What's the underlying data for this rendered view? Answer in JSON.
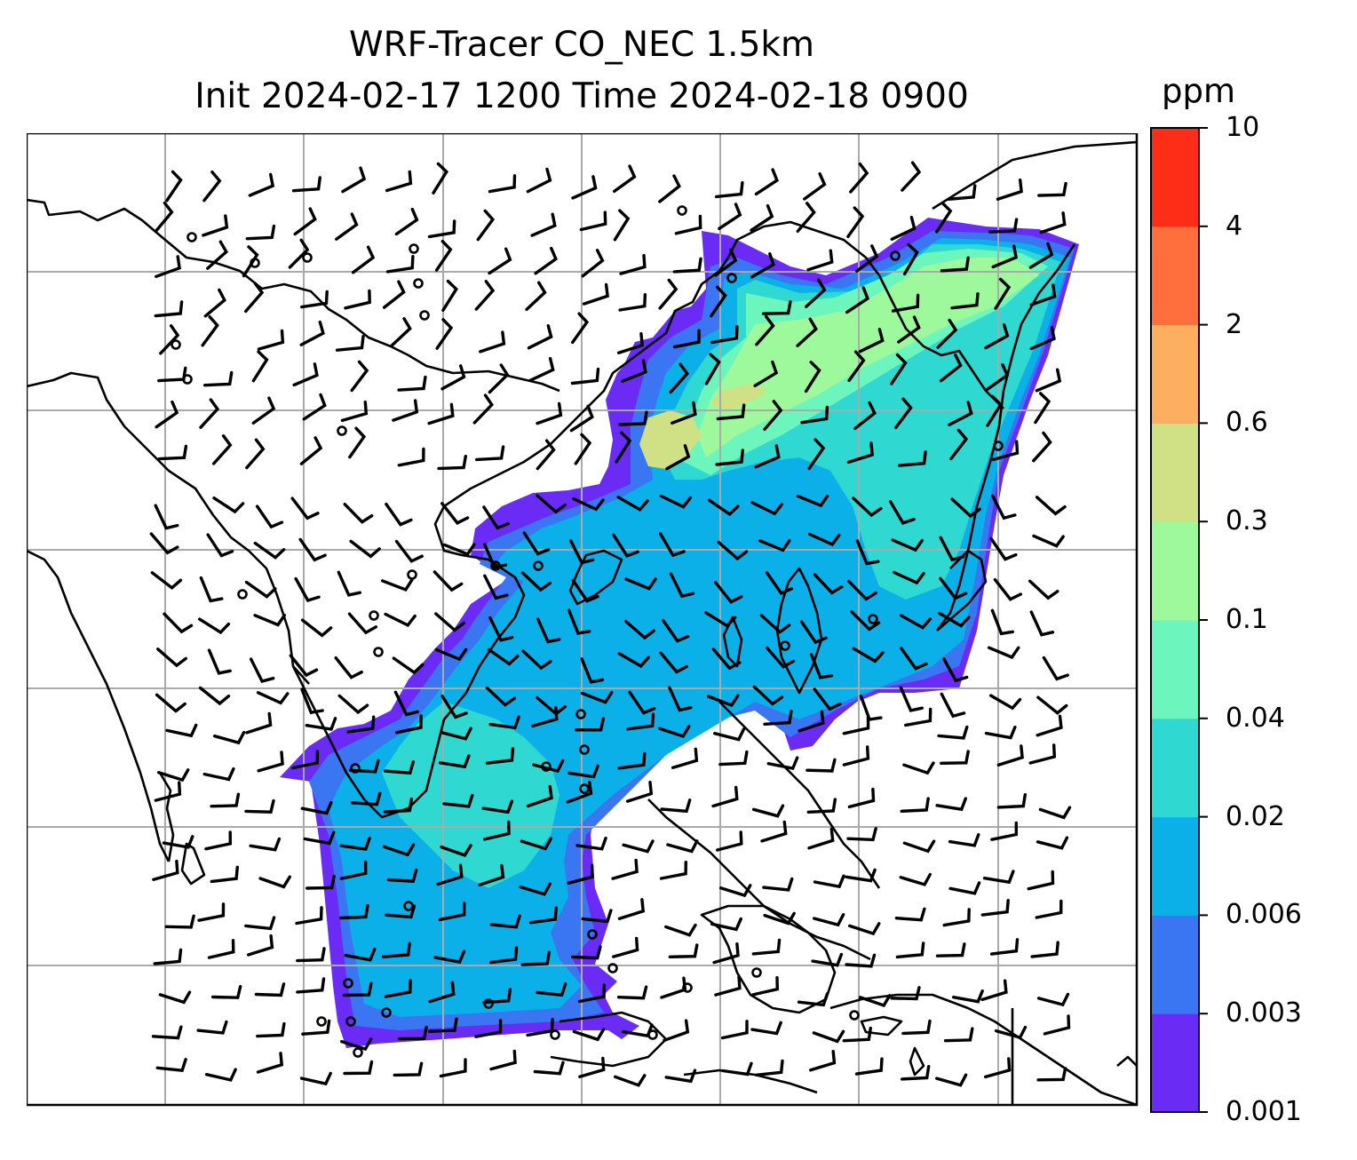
{
  "title": {
    "line1": "WRF-Tracer CO_NEC 1.5km",
    "line2": "Init 2024-02-17 1200 Time 2024-02-18 0900"
  },
  "colorbar": {
    "unit": "ppm",
    "tick_labels": [
      "10",
      "4",
      "2",
      "0.6",
      "0.3",
      "0.1",
      "0.04",
      "0.02",
      "0.006",
      "0.003",
      "0.001"
    ],
    "colors_bottom_to_top": [
      "#6a2cf5",
      "#3a76f2",
      "#0cb0e8",
      "#30d8d2",
      "#6cf6bd",
      "#9ef99c",
      "#cfe184",
      "#fbaf5f",
      "#fe6f3d",
      "#fe2d17"
    ]
  },
  "map": {
    "field": "CO_NEC tracer concentration",
    "features": [
      "coastlines",
      "country borders",
      "lat-lon gridlines",
      "wind barbs",
      "calm-wind circles"
    ],
    "gridline_color": "#aaaaaa"
  }
}
